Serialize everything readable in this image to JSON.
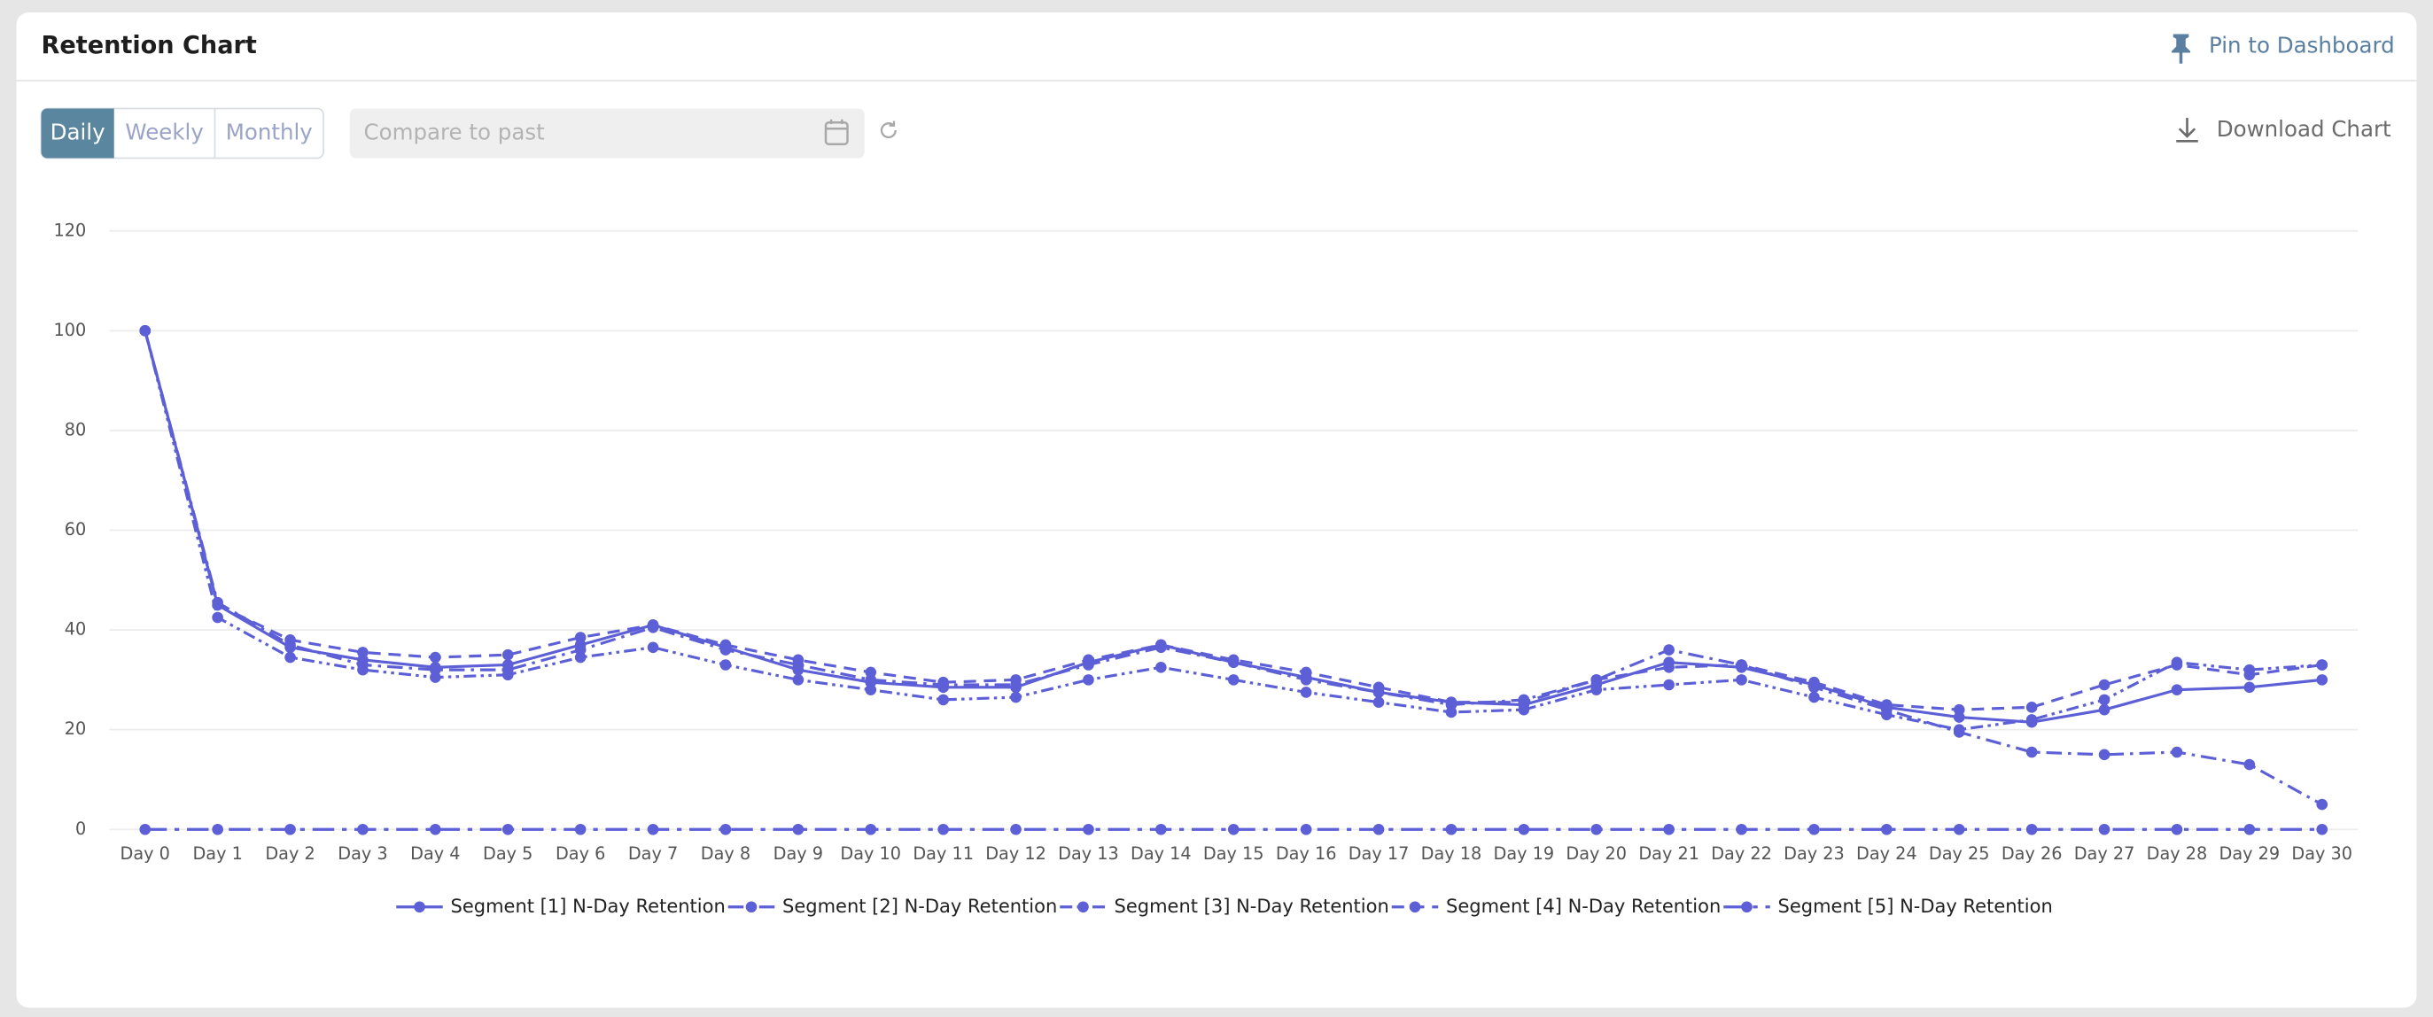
{
  "header": {
    "title": "Retention Chart",
    "pin": "Pin to Dashboard"
  },
  "toolbar": {
    "periods": [
      "Daily",
      "Weekly",
      "Monthly"
    ],
    "compare_placeholder": "Compare to past",
    "download": "Download Chart"
  },
  "chart_data": {
    "type": "line",
    "categories": [
      "Day 0",
      "Day 1",
      "Day 2",
      "Day 3",
      "Day 4",
      "Day 5",
      "Day 6",
      "Day 7",
      "Day 8",
      "Day 9",
      "Day 10",
      "Day 11",
      "Day 12",
      "Day 13",
      "Day 14",
      "Day 15",
      "Day 16",
      "Day 17",
      "Day 18",
      "Day 19",
      "Day 20",
      "Day 21",
      "Day 22",
      "Day 23",
      "Day 24",
      "Day 25",
      "Day 26",
      "Day 27",
      "Day 28",
      "Day 29",
      "Day 30"
    ],
    "series": [
      {
        "name": "Segment [1] N-Day Retention",
        "color": "#5c5fd6",
        "values": [
          100,
          45,
          36.5,
          34,
          32.5,
          33,
          37,
          41,
          36.5,
          32,
          29.5,
          28.5,
          28.5,
          33.5,
          37,
          33.5,
          30.5,
          27.5,
          25.5,
          25,
          29,
          33.5,
          32.5,
          29,
          24.5,
          22.5,
          21.5,
          24,
          28,
          28.5,
          30
        ]
      },
      {
        "name": "Segment [2] N-Day Retention",
        "color": "#5c5fd6",
        "values": [
          100,
          45.5,
          37,
          33,
          32,
          32,
          36,
          40.5,
          36,
          33,
          30,
          29,
          29,
          33,
          36.5,
          33.5,
          30,
          27.5,
          25,
          26,
          30,
          36,
          33,
          28.5,
          24,
          19.5,
          15.5,
          15,
          15.5,
          13,
          5
        ]
      },
      {
        "name": "Segment [3] N-Day Retention",
        "color": "#5c5fd6",
        "values": [
          100,
          42.5,
          34.5,
          32,
          30.5,
          31,
          34.5,
          36.5,
          33,
          30,
          28,
          26,
          26.5,
          30,
          32.5,
          30,
          27.5,
          25.5,
          23.5,
          24,
          28,
          29,
          30,
          26.5,
          23,
          20,
          22,
          26,
          33.5,
          32,
          33
        ]
      },
      {
        "name": "Segment [4] N-Day Retention",
        "color": "#5c5fd6",
        "values": [
          100,
          45,
          38,
          35.5,
          34.5,
          35,
          38.5,
          41,
          37,
          34,
          31.5,
          29.5,
          30,
          34,
          37,
          34,
          31.5,
          28.5,
          25.5,
          25.5,
          30,
          32.5,
          33,
          29.5,
          25,
          24,
          24.5,
          29,
          33,
          31,
          33
        ]
      },
      {
        "name": "Segment [5] N-Day Retention",
        "color": "#5c5fd6",
        "values": [
          0,
          0,
          0,
          0,
          0,
          0,
          0,
          0,
          0,
          0,
          0,
          0,
          0,
          0,
          0,
          0,
          0,
          0,
          0,
          0,
          0,
          0,
          0,
          0,
          0,
          0,
          0,
          0,
          0,
          0,
          0
        ]
      }
    ],
    "ylim": [
      0,
      120
    ],
    "yticks": [
      0,
      20,
      40,
      60,
      80,
      100,
      120
    ],
    "grid": true,
    "legend": "bottom"
  }
}
